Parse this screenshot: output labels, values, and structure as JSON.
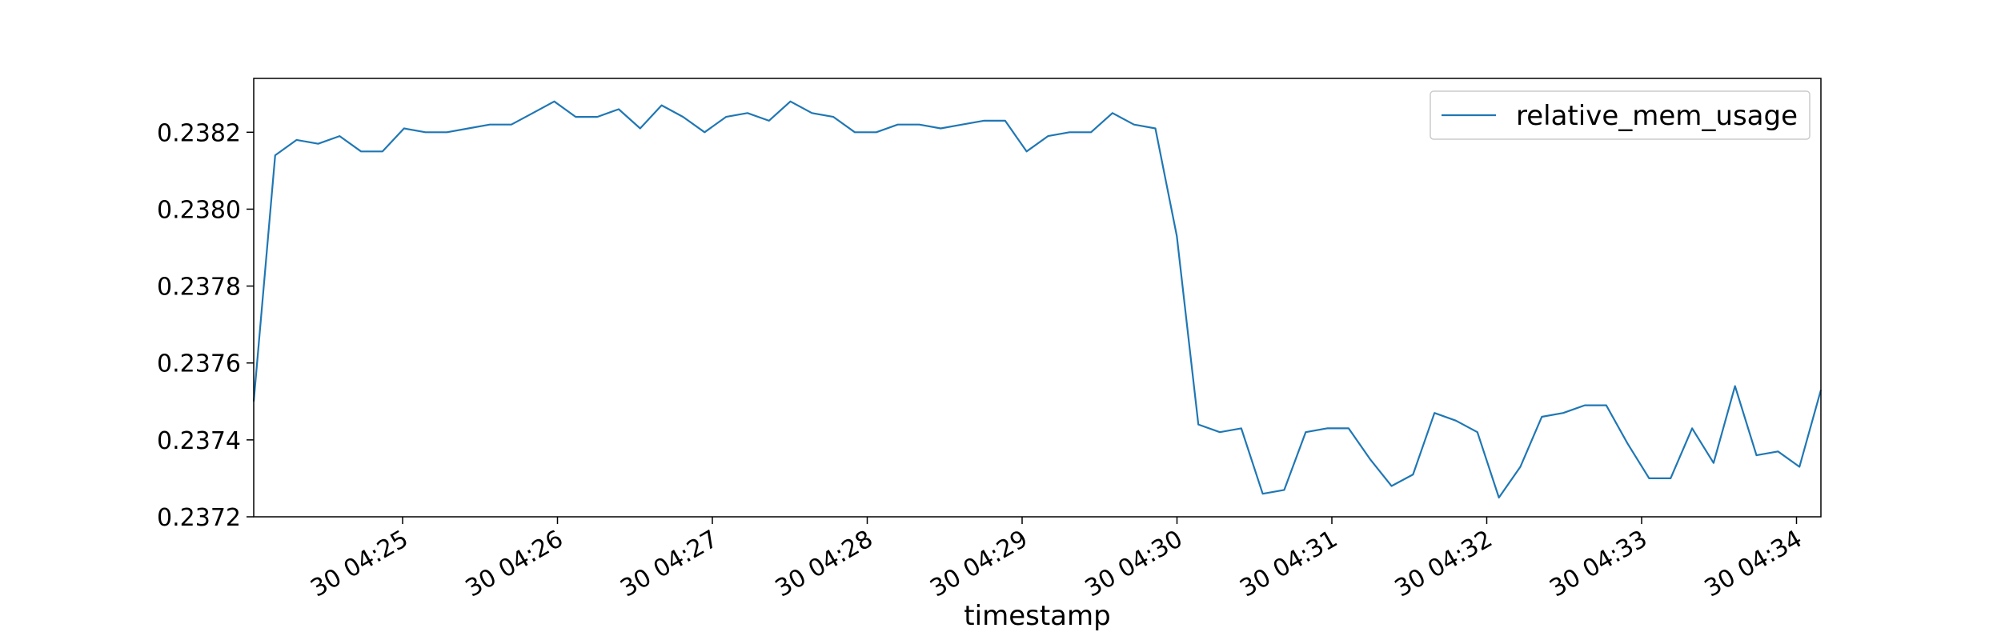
{
  "chart_data": {
    "type": "line",
    "title": "",
    "xlabel": "timestamp",
    "ylabel": "",
    "ylim": [
      0.2372,
      0.23834
    ],
    "grid": false,
    "legend_position": "top-right",
    "x_tick_labels": [
      "30 04:25",
      "30 04:26",
      "30 04:27",
      "30 04:28",
      "30 04:29",
      "30 04:30",
      "30 04:31",
      "30 04:32",
      "30 04:33",
      "30 04:34"
    ],
    "y_tick_labels": [
      "0.2372",
      "0.2374",
      "0.2376",
      "0.2378",
      "0.2380",
      "0.2382"
    ],
    "y_ticks": [
      0.2372,
      0.2374,
      0.2376,
      0.2378,
      0.238,
      0.2382
    ],
    "series": [
      {
        "name": "relative_mem_usage",
        "color": "#1f77b4",
        "values": [
          0.2375,
          0.23814,
          0.23818,
          0.23817,
          0.23819,
          0.23815,
          0.23815,
          0.23821,
          0.2382,
          0.2382,
          0.23821,
          0.23822,
          0.23822,
          0.23825,
          0.23828,
          0.23824,
          0.23824,
          0.23826,
          0.23821,
          0.23827,
          0.23824,
          0.2382,
          0.23824,
          0.23825,
          0.23823,
          0.23828,
          0.23825,
          0.23824,
          0.2382,
          0.2382,
          0.23822,
          0.23822,
          0.23821,
          0.23822,
          0.23823,
          0.23823,
          0.23815,
          0.23819,
          0.2382,
          0.2382,
          0.23825,
          0.23822,
          0.23821,
          0.23793,
          0.23744,
          0.23742,
          0.23743,
          0.23726,
          0.23727,
          0.23742,
          0.23743,
          0.23743,
          0.23735,
          0.23728,
          0.23731,
          0.23747,
          0.23745,
          0.23742,
          0.23725,
          0.23733,
          0.23746,
          0.23747,
          0.23749,
          0.23749,
          0.23739,
          0.2373,
          0.2373,
          0.23743,
          0.23734,
          0.23754,
          0.23736,
          0.23737,
          0.23733,
          0.23753
        ]
      }
    ]
  }
}
